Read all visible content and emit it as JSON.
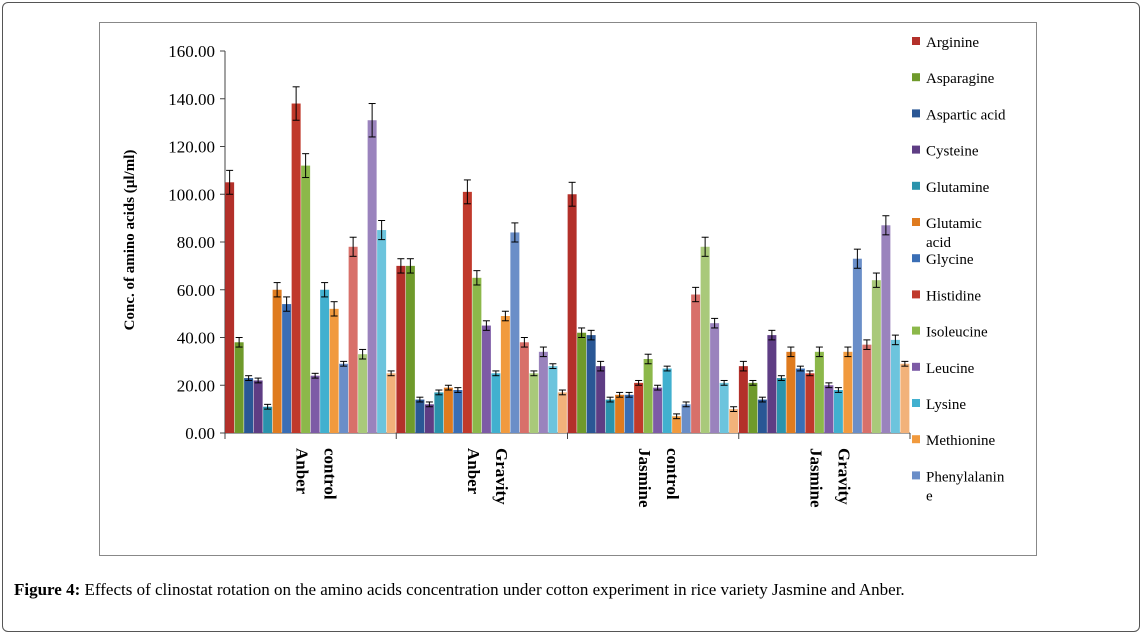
{
  "caption": {
    "label": "Figure 4:",
    "text": " Effects of clinostat rotation on the amino acids concentration under cotton experiment in rice variety Jasmine and Anber."
  },
  "colors": {
    "Arginine": "#b3302a",
    "Asparagine": "#6f9a2b",
    "Aspartic acid": "#2a5795",
    "Cysteine": "#5e3d84",
    "Glutamine": "#2a93ac",
    "Glutamic acid": "#df7b1f",
    "Glycine": "#3a6eb5",
    "Histidine": "#c0392b",
    "Isoleucine": "#8cb84a",
    "Leucine": "#7d5ba6",
    "Lysine": "#41b0cf",
    "Methionine": "#f19a3e",
    "Phenylalanine": "#6a8ec8",
    "Extra1": "#d8706a",
    "Extra2": "#a9c97a",
    "Extra3": "#9a83bd",
    "Extra4": "#6cc4dd",
    "Extra5": "#f2b27a"
  },
  "chart_data": {
    "type": "bar",
    "ylabel": "Conc. of amino acids (µl/ml)",
    "ylim": [
      0,
      160
    ],
    "yticks": [
      "0.00",
      "20.00",
      "40.00",
      "60.00",
      "80.00",
      "100.00",
      "120.00",
      "140.00",
      "160.00"
    ],
    "categories": [
      {
        "line1": "Anber",
        "line2": "control"
      },
      {
        "line1": "Anber",
        "line2": "Gravity"
      },
      {
        "line1": "Jasmine",
        "line2": "control"
      },
      {
        "line1": "Jasmine",
        "line2": "Gravity"
      }
    ],
    "legend_position": "right",
    "legend": [
      {
        "label": "Arginine",
        "lines": [
          "Arginine"
        ]
      },
      {
        "label": "Asparagine",
        "lines": [
          "Asparagine"
        ]
      },
      {
        "label": "Aspartic acid",
        "lines": [
          "Aspartic acid"
        ]
      },
      {
        "label": "Cysteine",
        "lines": [
          "Cysteine"
        ]
      },
      {
        "label": "Glutamine",
        "lines": [
          "Glutamine"
        ]
      },
      {
        "label": "Glutamic acid",
        "lines": [
          "Glutamic",
          "acid"
        ]
      },
      {
        "label": "Glycine",
        "lines": [
          "Glycine"
        ]
      },
      {
        "label": "Histidine",
        "lines": [
          "Histidine"
        ]
      },
      {
        "label": "Isoleucine",
        "lines": [
          "Isoleucine"
        ]
      },
      {
        "label": "Leucine",
        "lines": [
          "Leucine"
        ]
      },
      {
        "label": "Lysine",
        "lines": [
          "Lysine"
        ]
      },
      {
        "label": "Methionine",
        "lines": [
          "Methionine"
        ]
      },
      {
        "label": "Phenylalanine",
        "lines": [
          "Phenylalanin",
          "e"
        ]
      }
    ],
    "series": [
      {
        "name": "Arginine",
        "color_key": "Arginine",
        "values": [
          105,
          70,
          100,
          28
        ],
        "errors": [
          5,
          3,
          5,
          2
        ]
      },
      {
        "name": "Asparagine",
        "color_key": "Asparagine",
        "values": [
          38,
          70,
          42,
          21
        ],
        "errors": [
          2,
          3,
          2,
          1
        ]
      },
      {
        "name": "Aspartic acid",
        "color_key": "Aspartic acid",
        "values": [
          23,
          14,
          41,
          14
        ],
        "errors": [
          1,
          1,
          2,
          1
        ]
      },
      {
        "name": "Cysteine",
        "color_key": "Cysteine",
        "values": [
          22,
          12,
          28,
          41
        ],
        "errors": [
          1,
          1,
          2,
          2
        ]
      },
      {
        "name": "Glutamine",
        "color_key": "Glutamine",
        "values": [
          11,
          17,
          14,
          23
        ],
        "errors": [
          1,
          1,
          1,
          1
        ]
      },
      {
        "name": "Glutamic acid",
        "color_key": "Glutamic acid",
        "values": [
          60,
          19,
          16,
          34
        ],
        "errors": [
          3,
          1,
          1,
          2
        ]
      },
      {
        "name": "Glycine",
        "color_key": "Glycine",
        "values": [
          54,
          18,
          16,
          27
        ],
        "errors": [
          3,
          1,
          1,
          1
        ]
      },
      {
        "name": "Histidine",
        "color_key": "Histidine",
        "values": [
          138,
          101,
          21,
          25
        ],
        "errors": [
          7,
          5,
          1,
          1
        ]
      },
      {
        "name": "Isoleucine",
        "color_key": "Isoleucine",
        "values": [
          112,
          65,
          31,
          34
        ],
        "errors": [
          5,
          3,
          2,
          2
        ]
      },
      {
        "name": "Leucine",
        "color_key": "Leucine",
        "values": [
          24,
          45,
          19,
          20
        ],
        "errors": [
          1,
          2,
          1,
          1
        ]
      },
      {
        "name": "Lysine",
        "color_key": "Lysine",
        "values": [
          60,
          25,
          27,
          18
        ],
        "errors": [
          3,
          1,
          1,
          1
        ]
      },
      {
        "name": "Methionine",
        "color_key": "Methionine",
        "values": [
          52,
          49,
          7,
          34
        ],
        "errors": [
          3,
          2,
          1,
          2
        ]
      },
      {
        "name": "Phenylalanine",
        "color_key": "Phenylalanine",
        "values": [
          29,
          84,
          12,
          73
        ],
        "errors": [
          1,
          4,
          1,
          4
        ]
      },
      {
        "name": "",
        "color_key": "Extra1",
        "values": [
          78,
          38,
          58,
          37
        ],
        "errors": [
          4,
          2,
          3,
          2
        ]
      },
      {
        "name": "",
        "color_key": "Extra2",
        "values": [
          33,
          25,
          78,
          64
        ],
        "errors": [
          2,
          1,
          4,
          3
        ]
      },
      {
        "name": "",
        "color_key": "Extra3",
        "values": [
          131,
          34,
          46,
          87
        ],
        "errors": [
          7,
          2,
          2,
          4
        ]
      },
      {
        "name": "",
        "color_key": "Extra4",
        "values": [
          85,
          28,
          21,
          39
        ],
        "errors": [
          4,
          1,
          1,
          2
        ]
      },
      {
        "name": "",
        "color_key": "Extra5",
        "values": [
          25,
          17,
          10,
          29
        ],
        "errors": [
          1,
          1,
          1,
          1
        ]
      }
    ]
  }
}
